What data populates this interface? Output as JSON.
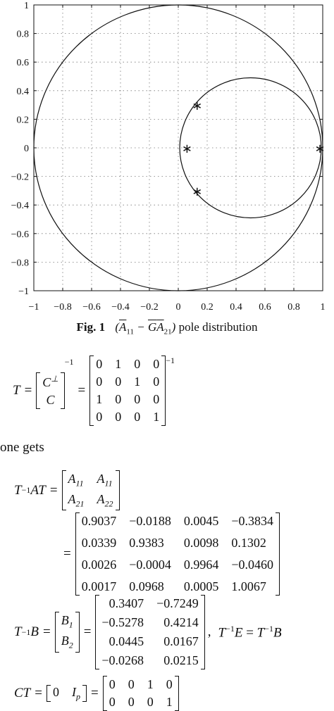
{
  "chart_data": {
    "type": "scatter",
    "title": "",
    "xlabel": "",
    "ylabel": "",
    "xlim": [
      -1,
      1
    ],
    "ylim": [
      -1,
      1
    ],
    "grid": true,
    "xticks": [
      "-1",
      "-0.8",
      "-0.6",
      "-0.4",
      "-0.2",
      "0",
      "0.2",
      "0.4",
      "0.6",
      "0.8",
      "1"
    ],
    "yticks": [
      "1",
      "0.8",
      "0.6",
      "0.4",
      "0.2",
      "0",
      "-0.2",
      "-0.4",
      "-0.6",
      "-0.8",
      "-1"
    ],
    "circles": [
      {
        "cx": 0,
        "cy": 0,
        "r": 1
      },
      {
        "cx": 0.5,
        "cy": 0,
        "r": 0.49
      }
    ],
    "points": [
      {
        "x": 0.13,
        "y": 0.3
      },
      {
        "x": 0.06,
        "y": 0.0
      },
      {
        "x": 0.13,
        "y": -0.3
      },
      {
        "x": 0.98,
        "y": 0.0
      }
    ]
  },
  "caption": {
    "label": "Fig. 1",
    "text": "pole distribution"
  },
  "eq_T": {
    "lhs": "T =",
    "inner_top": "C",
    "inner_bottom": "C",
    "rows": [
      [
        "0",
        "1",
        "0",
        "0"
      ],
      [
        "0",
        "0",
        "1",
        "0"
      ],
      [
        "1",
        "0",
        "0",
        "0"
      ],
      [
        "0",
        "0",
        "0",
        "1"
      ]
    ]
  },
  "one_gets": "one gets",
  "eq_TAT": {
    "rows": [
      [
        "0.9037",
        "−0.0188",
        "0.0045",
        "−0.3834"
      ],
      [
        "0.0339",
        "0.9383",
        "0.0098",
        "0.1302"
      ],
      [
        "0.0026",
        "−0.0004",
        "0.9964",
        "−0.0460"
      ],
      [
        "0.0017",
        "0.0968",
        "0.0005",
        "1.0067"
      ]
    ]
  },
  "eq_TB": {
    "rows": [
      [
        "0.3407",
        "−0.7249"
      ],
      [
        "−0.5278",
        "0.4214"
      ],
      [
        "0.0445",
        "0.0167"
      ],
      [
        "−0.0268",
        "0.0215"
      ]
    ]
  },
  "eq_CT": {
    "rows": [
      [
        "0",
        "0",
        "1",
        "0"
      ],
      [
        "0",
        "0",
        "0",
        "1"
      ]
    ]
  }
}
